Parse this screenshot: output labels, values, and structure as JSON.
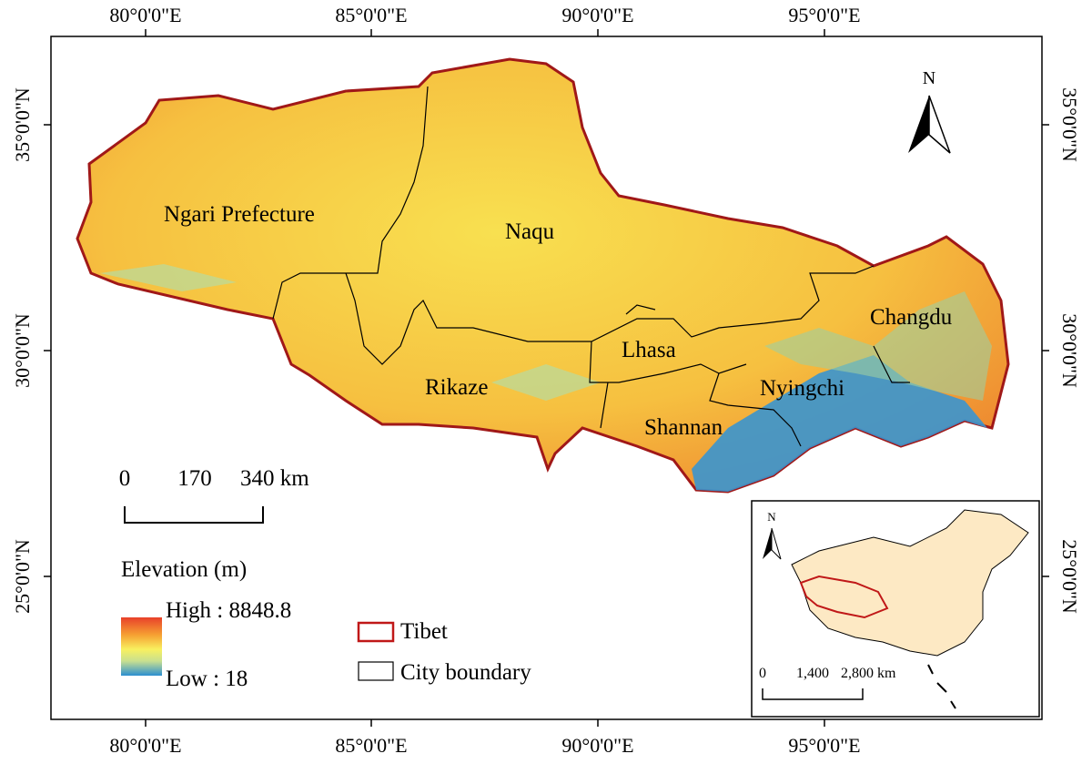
{
  "map": {
    "longitude_labels": [
      "80°0'0\"E",
      "85°0'0\"E",
      "90°0'0\"E",
      "95°0'0\"E"
    ],
    "latitude_labels": [
      "35°0'0\"N",
      "30°0'0\"N",
      "25°0'0\"N"
    ],
    "regions": [
      "Ngari Prefecture",
      "Naqu",
      "Changdu",
      "Lhasa",
      "Rikaze",
      "Nyingchi",
      "Shannan"
    ],
    "north": "N",
    "scale_bar": [
      "0",
      "170",
      "340 km"
    ],
    "legend": {
      "title": "Elevation (m)",
      "high": "High : 8848.8",
      "low": "Low : 18",
      "tibet": "Tibet",
      "city_boundary": "City boundary"
    },
    "inset": {
      "north": "N",
      "scale_bar": [
        "0",
        "1,400",
        "2,800 km"
      ]
    }
  }
}
